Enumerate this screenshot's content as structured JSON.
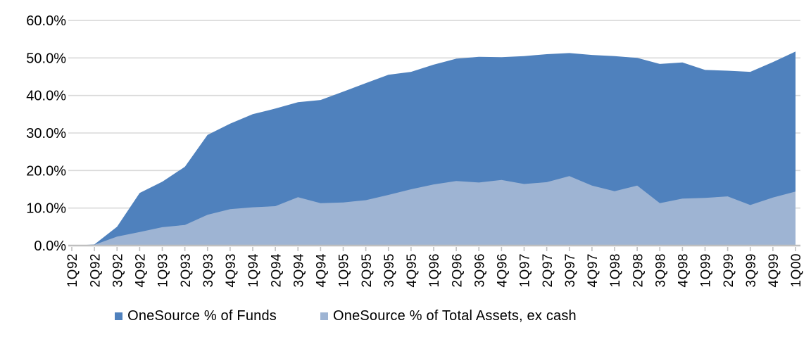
{
  "chart_data": {
    "type": "area",
    "title": "",
    "categories": [
      "1Q92",
      "2Q92",
      "3Q92",
      "4Q92",
      "1Q93",
      "2Q93",
      "3Q93",
      "4Q93",
      "1Q94",
      "2Q94",
      "3Q94",
      "4Q94",
      "1Q95",
      "2Q95",
      "3Q95",
      "4Q95",
      "1Q96",
      "2Q96",
      "3Q96",
      "4Q96",
      "1Q97",
      "2Q97",
      "3Q97",
      "4Q97",
      "1Q98",
      "2Q98",
      "3Q98",
      "4Q98",
      "1Q99",
      "2Q99",
      "3Q99",
      "4Q99",
      "1Q00"
    ],
    "series": [
      {
        "name": "OneSource % of Funds",
        "color": "#4f81bd",
        "values": [
          0,
          0.3,
          5,
          14,
          17,
          21,
          29.5,
          32.5,
          35,
          36.5,
          38.2,
          38.8,
          41,
          43.3,
          45.5,
          46.3,
          48.2,
          49.8,
          50.3,
          50.2,
          50.5,
          51,
          51.3,
          50.8,
          50.5,
          50,
          48.4,
          48.8,
          46.8,
          46.6,
          46.3,
          48.9,
          51.7
        ]
      },
      {
        "name": "OneSource % of Total Assets, ex cash",
        "color": "#9eb4d3",
        "values": [
          0,
          0.2,
          2.4,
          3.6,
          4.9,
          5.5,
          8.2,
          9.7,
          10.2,
          10.5,
          12.9,
          11.3,
          11.5,
          12.1,
          13.5,
          15,
          16.3,
          17.2,
          16.8,
          17.5,
          16.4,
          16.9,
          18.5,
          16,
          14.5,
          16,
          11.3,
          12.5,
          12.7,
          13.1,
          10.8,
          12.8,
          14.4
        ]
      }
    ],
    "xlabel": "",
    "ylabel": "",
    "ylim": [
      0,
      60
    ],
    "y_tick_step": 10,
    "y_tick_labels": [
      "0.0%",
      "10.0%",
      "20.0%",
      "30.0%",
      "40.0%",
      "50.0%",
      "60.0%"
    ],
    "grid": true,
    "legend_position": "bottom"
  },
  "style_colors": {
    "gridline": "#d9d9d9",
    "axis": "#bfbfbf",
    "label_text": "#000000"
  }
}
